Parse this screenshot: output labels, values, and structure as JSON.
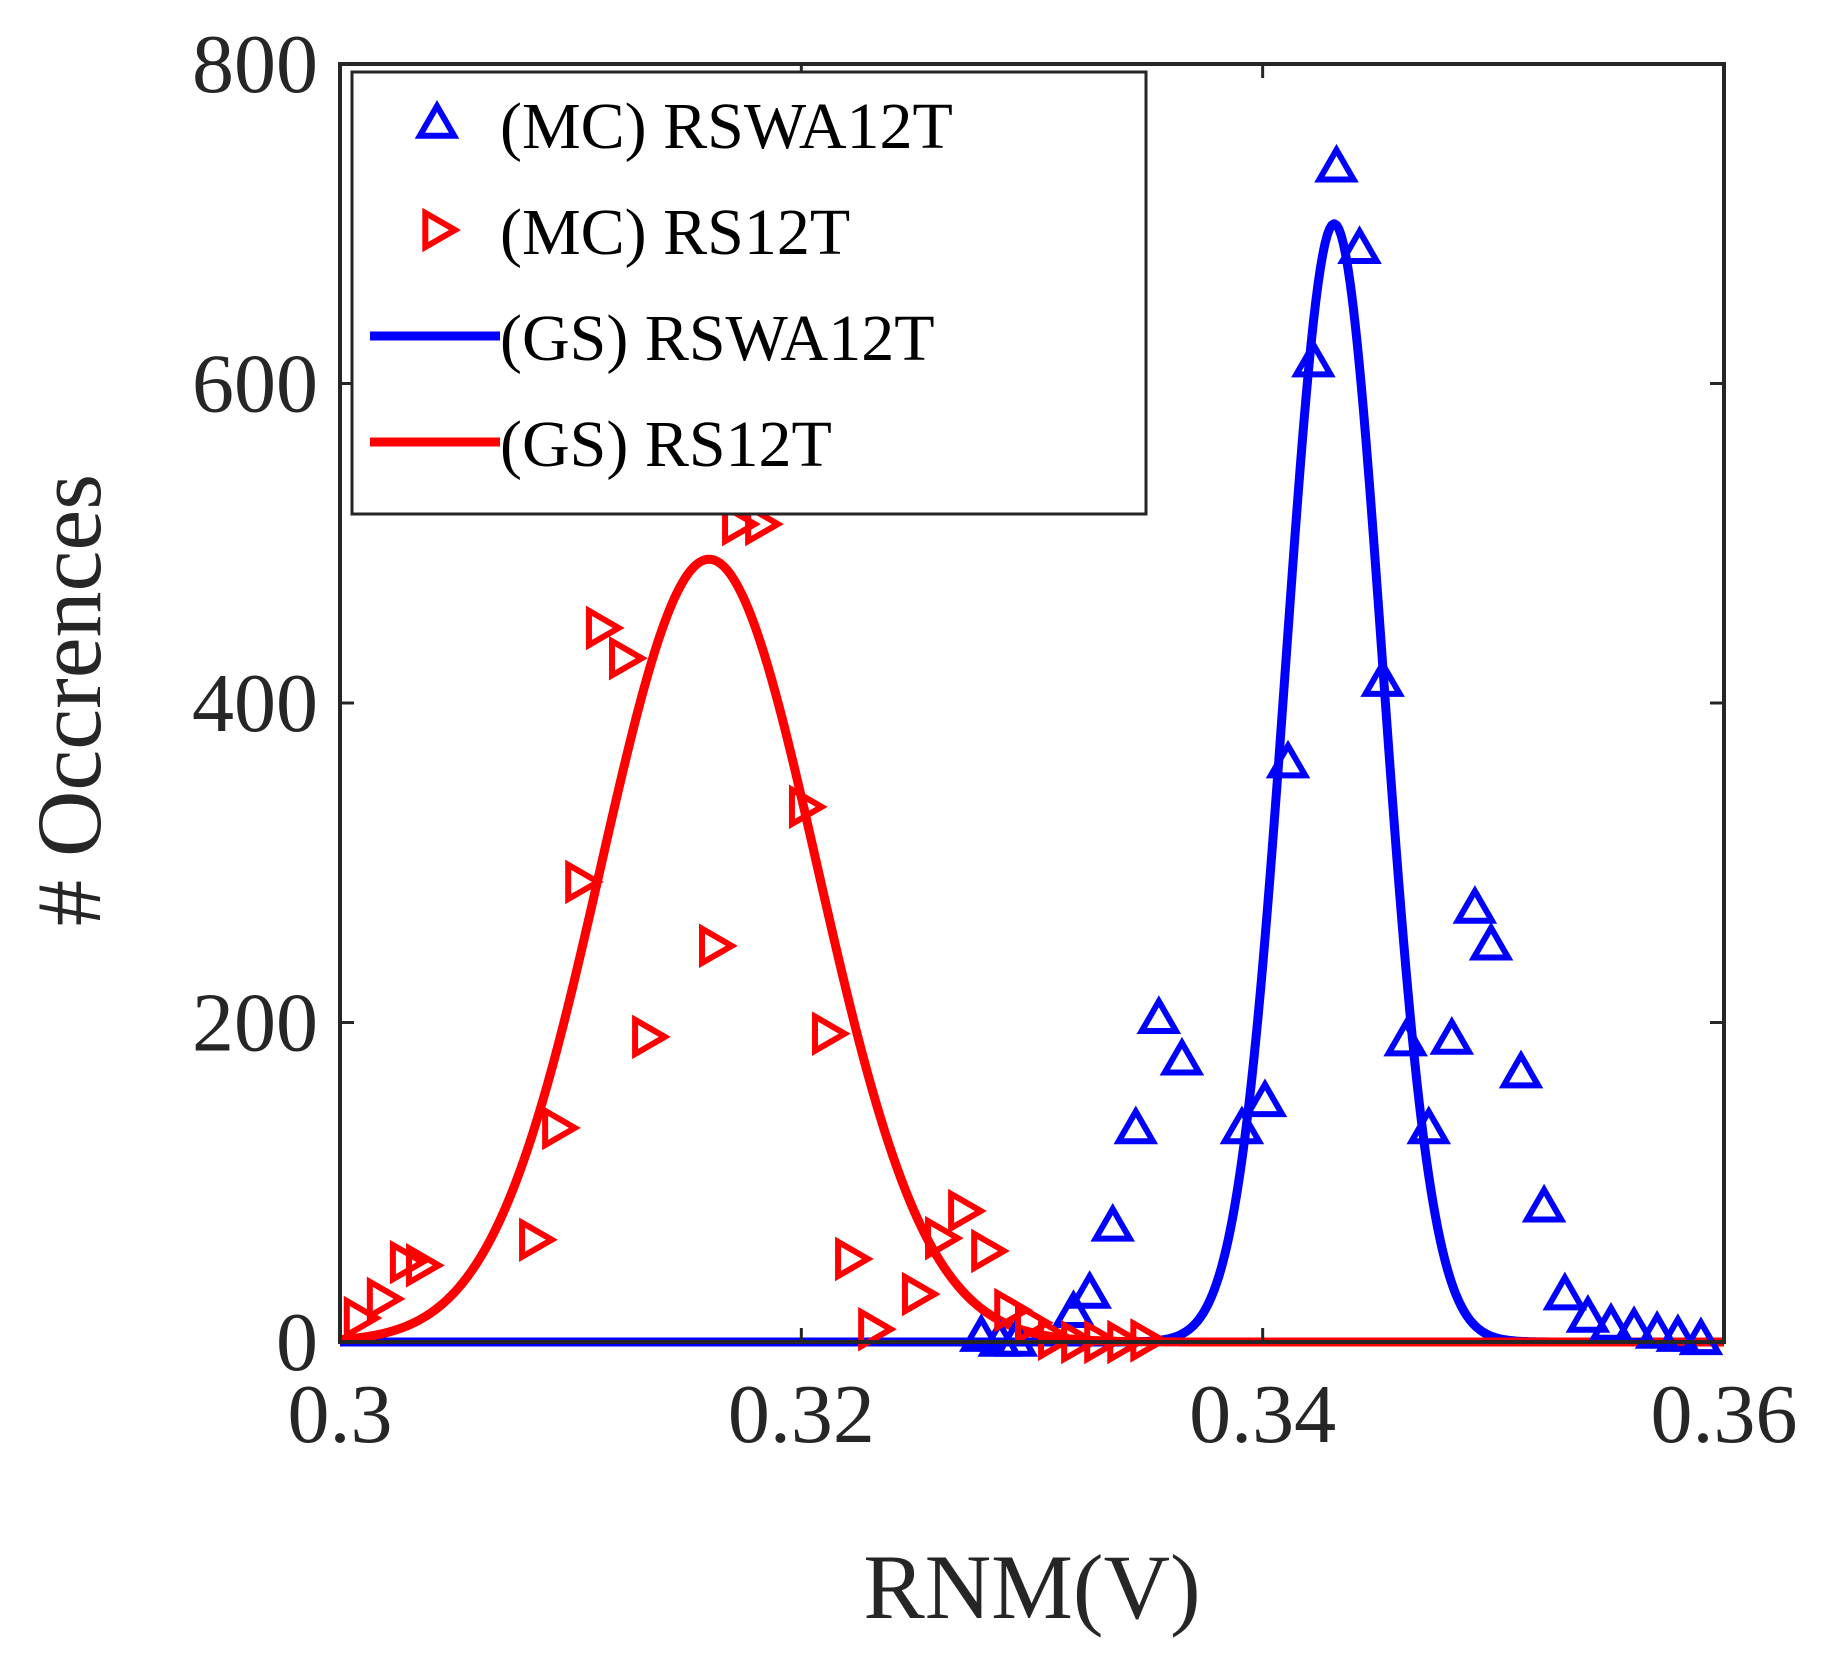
{
  "chart_data": {
    "type": "scatter",
    "xlabel": "RNM(V)",
    "ylabel": "# Occrences",
    "xlim": [
      0.3,
      0.36
    ],
    "ylim": [
      0,
      800
    ],
    "xticks": [
      0.3,
      0.32,
      0.34,
      0.36
    ],
    "xtick_labels": [
      "0.3",
      "0.32",
      "0.34",
      "0.36"
    ],
    "yticks": [
      0,
      200,
      400,
      600,
      800
    ],
    "ytick_labels": [
      "0",
      "200",
      "400",
      "600",
      "800"
    ],
    "legend_position": "top-left",
    "series": [
      {
        "name": "(MC) RSWA12T",
        "kind": "marker",
        "marker": "triangle-up",
        "color": "#0000ff",
        "points": [
          [
            0.3278,
            3
          ],
          [
            0.3286,
            0
          ],
          [
            0.3293,
            0
          ],
          [
            0.3318,
            18
          ],
          [
            0.3325,
            30
          ],
          [
            0.3335,
            72
          ],
          [
            0.3345,
            133
          ],
          [
            0.3355,
            202
          ],
          [
            0.3365,
            176
          ],
          [
            0.3391,
            133
          ],
          [
            0.3401,
            150
          ],
          [
            0.3411,
            362
          ],
          [
            0.3422,
            613
          ],
          [
            0.3432,
            735
          ],
          [
            0.3442,
            684
          ],
          [
            0.3452,
            413
          ],
          [
            0.3462,
            188
          ],
          [
            0.3472,
            133
          ],
          [
            0.3482,
            189
          ],
          [
            0.3492,
            271
          ],
          [
            0.3499,
            248
          ],
          [
            0.3512,
            168
          ],
          [
            0.3522,
            84
          ],
          [
            0.3531,
            29
          ],
          [
            0.3541,
            15
          ],
          [
            0.3551,
            10
          ],
          [
            0.3561,
            8
          ],
          [
            0.3571,
            5
          ],
          [
            0.358,
            3
          ],
          [
            0.359,
            1
          ]
        ]
      },
      {
        "name": "(MC) RS12T",
        "kind": "marker",
        "marker": "triangle-right",
        "color": "#ff0000",
        "points": [
          [
            0.3008,
            15
          ],
          [
            0.3018,
            27
          ],
          [
            0.3028,
            50
          ],
          [
            0.3035,
            48
          ],
          [
            0.3084,
            64
          ],
          [
            0.3094,
            134
          ],
          [
            0.3104,
            288
          ],
          [
            0.3113,
            447
          ],
          [
            0.3123,
            428
          ],
          [
            0.3133,
            191
          ],
          [
            0.3162,
            248
          ],
          [
            0.3172,
            512
          ],
          [
            0.3182,
            512
          ],
          [
            0.3201,
            335
          ],
          [
            0.3211,
            193
          ],
          [
            0.3221,
            52
          ],
          [
            0.3231,
            8
          ],
          [
            0.325,
            30
          ],
          [
            0.326,
            65
          ],
          [
            0.327,
            82
          ],
          [
            0.328,
            57
          ],
          [
            0.329,
            20
          ],
          [
            0.3299,
            12
          ],
          [
            0.3309,
            2
          ],
          [
            0.3319,
            0
          ],
          [
            0.3329,
            0
          ],
          [
            0.3339,
            0
          ],
          [
            0.3349,
            1
          ]
        ]
      },
      {
        "name": "(GS) RSWA12T",
        "kind": "line",
        "color": "#0000ff",
        "gaussian": {
          "peak": 700,
          "mean": 0.3431,
          "sigma": 0.0021
        },
        "x_range": [
          0.3,
          0.36
        ]
      },
      {
        "name": "(GS) RS12T",
        "kind": "line",
        "color": "#ff0000",
        "gaussian": {
          "peak": 490,
          "mean": 0.316,
          "sigma": 0.0047
        },
        "x_range": [
          0.3,
          0.36
        ]
      }
    ]
  }
}
